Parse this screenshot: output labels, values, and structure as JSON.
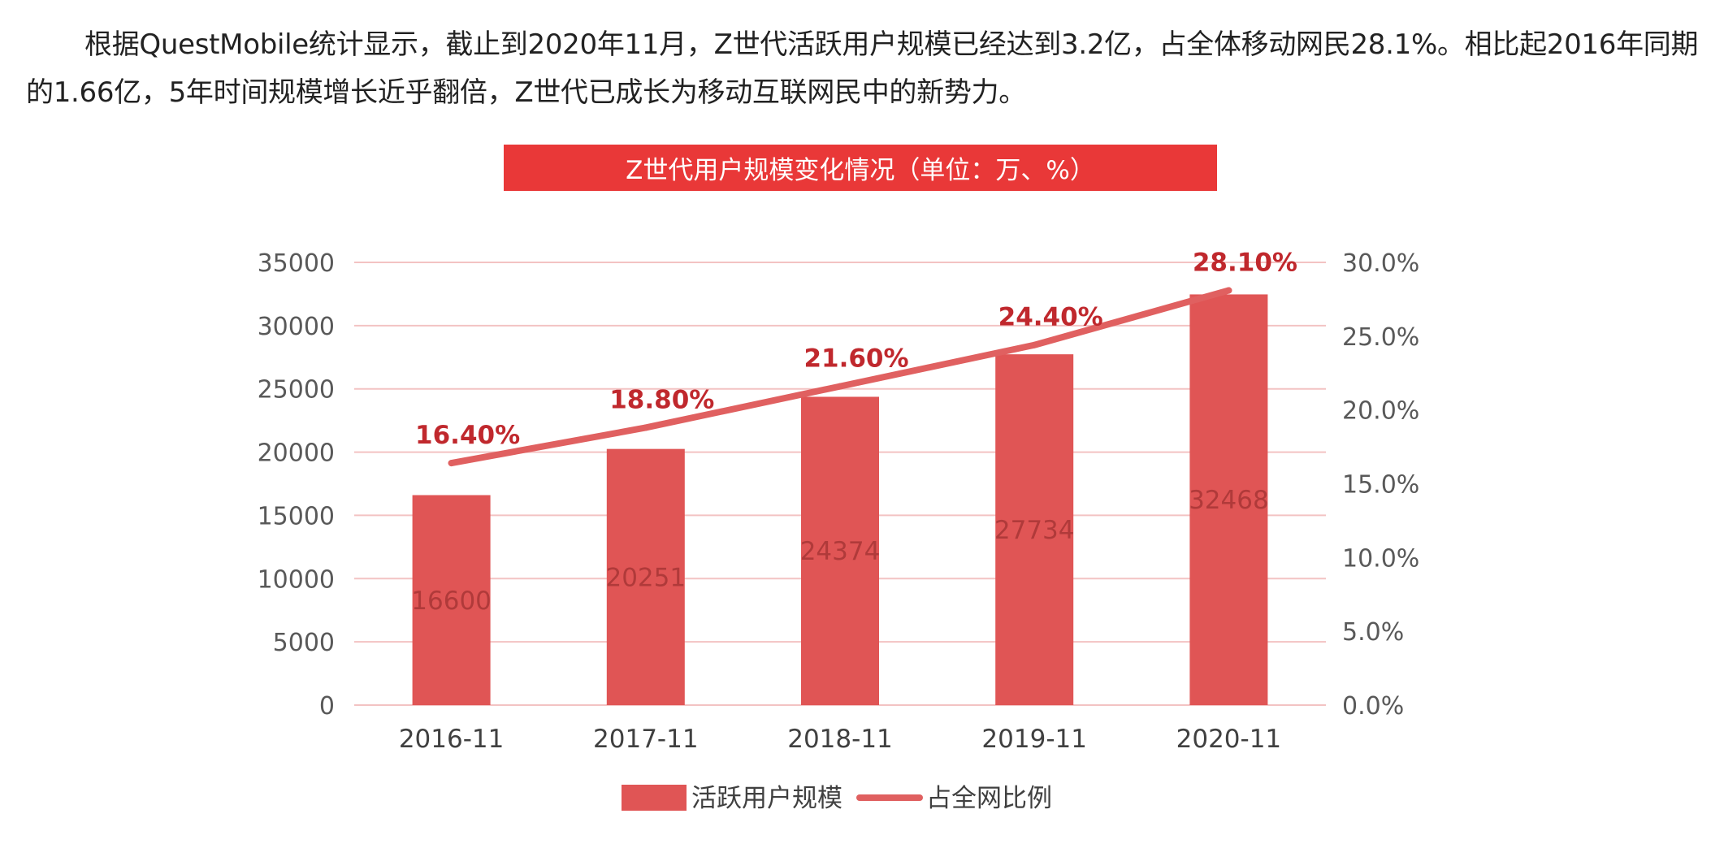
{
  "paragraph": "根据QuestMobile统计显示，截止到2020年11月，Z世代活跃用户规模已经达到3.2亿，占全体移动网民28.1%。相比起2016年同期的1.66亿，5年时间规模增长近乎翻倍，Z世代已成长为移动互联网民中的新势力。",
  "colors": {
    "bar": "#e05555",
    "line": "#e06060",
    "grid": "#f3c3c3",
    "banner": "#e93838",
    "pct_label": "#c0282d"
  },
  "chart_data": {
    "type": "bar",
    "title": "Z世代用户规模变化情况（单位：万、%）",
    "categories": [
      "2016-11",
      "2017-11",
      "2018-11",
      "2019-11",
      "2020-11"
    ],
    "series": [
      {
        "name": "活跃用户规模",
        "kind": "bar",
        "axis": "left",
        "values": [
          16600,
          20251,
          24374,
          27734,
          32468
        ]
      },
      {
        "name": "占全网比例",
        "kind": "line",
        "axis": "right",
        "values": [
          16.4,
          18.8,
          21.6,
          24.4,
          28.1
        ]
      }
    ],
    "bar_labels": [
      "16600",
      "20251",
      "24374",
      "27734",
      "32468"
    ],
    "line_labels": [
      "16.40%",
      "18.80%",
      "21.60%",
      "24.40%",
      "28.10%"
    ],
    "ylim": [
      0,
      35000
    ],
    "y_ticks": [
      "0",
      "5000",
      "10000",
      "15000",
      "20000",
      "25000",
      "30000",
      "35000"
    ],
    "y2lim": [
      0,
      30
    ],
    "y2_ticks": [
      "0.0%",
      "5.0%",
      "10.0%",
      "15.0%",
      "20.0%",
      "25.0%",
      "30.0%"
    ],
    "legend": [
      "活跃用户规模",
      "占全网比例"
    ],
    "legend_position": "bottom",
    "grid": true
  }
}
